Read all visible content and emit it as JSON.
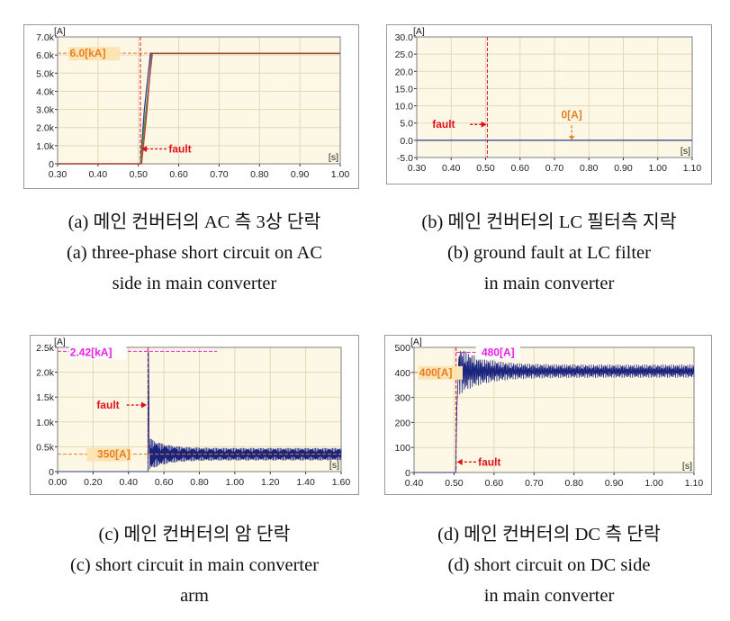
{
  "chart_data": [
    {
      "type": "line",
      "unit_label": "[A]",
      "xunit_label": "[s]",
      "xlim": [
        0.3,
        1.0
      ],
      "ylim": [
        0,
        7000
      ],
      "xticks": [
        "0.30",
        "0.40",
        "0.50",
        "0.60",
        "0.70",
        "0.80",
        "0.90",
        "1.00"
      ],
      "yticks": [
        "0",
        "1.0k",
        "2.0k",
        "3.0k",
        "4.0k",
        "5.0k",
        "6.0k",
        "7.0k"
      ],
      "fault_time": 0.505,
      "series": [
        {
          "color": "#2d3b8c",
          "points": [
            [
              0.3,
              0
            ],
            [
              0.505,
              0
            ],
            [
              0.515,
              3000
            ],
            [
              0.53,
              6100
            ],
            [
              1.0,
              6100
            ]
          ]
        },
        {
          "color": "#3a9a3a",
          "points": [
            [
              0.3,
              0
            ],
            [
              0.505,
              0
            ],
            [
              0.52,
              3200
            ],
            [
              0.535,
              6100
            ],
            [
              1.0,
              6100
            ]
          ]
        },
        {
          "color": "#c43a3a",
          "points": [
            [
              0.3,
              0
            ],
            [
              0.508,
              0
            ],
            [
              0.52,
              2600
            ],
            [
              0.533,
              6080
            ],
            [
              1.0,
              6080
            ]
          ]
        }
      ],
      "annotations": [
        {
          "text": "6.0[kA]",
          "color": "#e67e22"
        },
        {
          "text": "fault",
          "color": "#e0101c"
        }
      ],
      "caption_ko": "(a) 메인 컨버터의 AC 측 3상 단락",
      "caption_en": [
        "(a) three-phase short circuit on AC",
        "side in main converter"
      ]
    },
    {
      "type": "line",
      "unit_label": "[A]",
      "xunit_label": "[s]",
      "xlim": [
        0.3,
        1.1
      ],
      "ylim": [
        -5.0,
        30.0
      ],
      "xticks": [
        "0.30",
        "0.40",
        "0.50",
        "0.60",
        "0.70",
        "0.80",
        "0.90",
        "1.00",
        "1.10"
      ],
      "yticks": [
        "-5.0",
        "0.0",
        "5.0",
        "10.0",
        "15.0",
        "20.0",
        "25.0",
        "30.0"
      ],
      "fault_time": 0.505,
      "series": [
        {
          "color": "#2d3b8c",
          "points": [
            [
              0.3,
              0
            ],
            [
              1.1,
              0
            ]
          ]
        }
      ],
      "annotations": [
        {
          "text": "fault",
          "color": "#e0101c"
        },
        {
          "text": "0[A]",
          "color": "#e67e22"
        }
      ],
      "caption_ko": "(b) 메인 컨버터의 LC 필터측 지락",
      "caption_en": [
        "(b) ground fault at LC filter",
        "in main converter"
      ]
    },
    {
      "type": "line",
      "unit_label": "[A]",
      "xunit_label": "[s]",
      "xlim": [
        0.0,
        1.6
      ],
      "ylim": [
        0,
        2500
      ],
      "xticks": [
        "0.00",
        "0.20",
        "0.40",
        "0.60",
        "0.80",
        "1.00",
        "1.20",
        "1.40",
        "1.60"
      ],
      "yticks": [
        "0",
        "0.5k",
        "1.0k",
        "1.5k",
        "2.0k",
        "2.5k"
      ],
      "fault_time": 0.51,
      "peak_value": 2420,
      "steady_mean": 350,
      "steady_min": 120,
      "steady_max": 470,
      "series": [
        {
          "color": "#1a237e"
        }
      ],
      "annotations": [
        {
          "text": "2.42[kA]",
          "color": "#e91ee9"
        },
        {
          "text": "fault",
          "color": "#e0101c"
        },
        {
          "text": "350[A]",
          "color": "#e67e22"
        }
      ],
      "caption_ko": "(c) 메인 컨버터의 암 단락",
      "caption_en": [
        "(c) short circuit in main converter",
        "arm"
      ]
    },
    {
      "type": "line",
      "unit_label": "[A]",
      "xunit_label": "[s]",
      "xlim": [
        0.4,
        1.1
      ],
      "ylim": [
        0,
        500
      ],
      "xticks": [
        "0.40",
        "0.50",
        "0.60",
        "0.70",
        "0.80",
        "0.90",
        "1.00",
        "1.10"
      ],
      "yticks": [
        "0",
        "100",
        "200",
        "300",
        "400",
        "500"
      ],
      "fault_time": 0.505,
      "peak_value": 480,
      "steady_mean": 400,
      "steady_min": 375,
      "steady_max": 430,
      "series": [
        {
          "color": "#1a237e"
        }
      ],
      "annotations": [
        {
          "text": "480[A]",
          "color": "#e91ee9"
        },
        {
          "text": "400[A]",
          "color": "#e67e22"
        },
        {
          "text": "fault",
          "color": "#e0101c"
        }
      ],
      "caption_ko": "(d) 메인 컨버터의 DC 측 단락",
      "caption_en": [
        "(d) short circuit on DC side",
        "in main converter"
      ]
    }
  ],
  "colors": {
    "plot_bg": "#fdf8e6",
    "grid": "#e3d8b6",
    "frame": "#7f7f7f",
    "fault_line": "#e0101c"
  }
}
